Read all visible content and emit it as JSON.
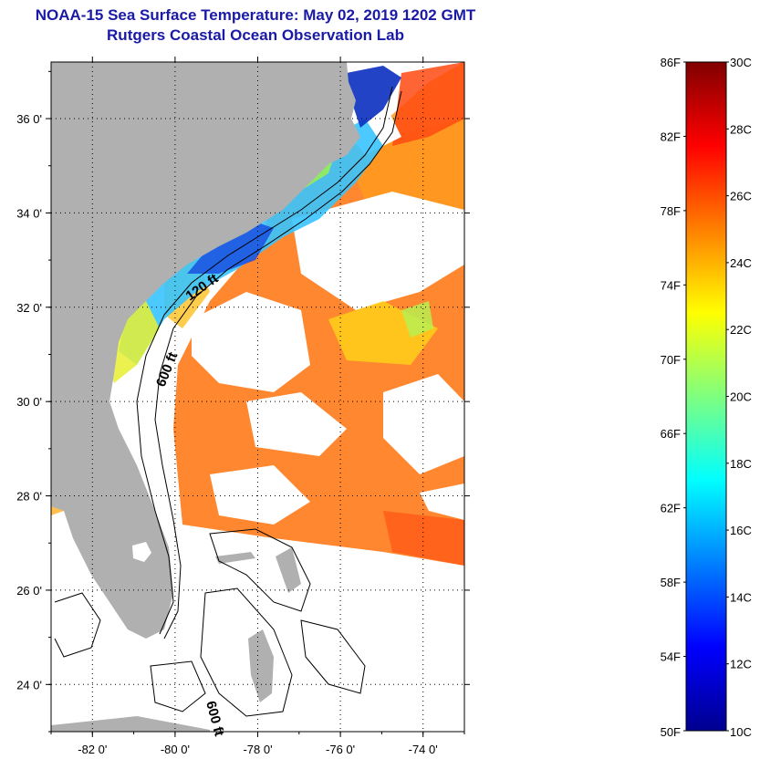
{
  "title": {
    "line1": "NOAA-15 Sea Surface Temperature:  May 02, 2019 1202 GMT",
    "line2": "Rutgers Coastal Ocean Observation Lab"
  },
  "map": {
    "lon_range": [
      -83,
      -73
    ],
    "lat_range": [
      23,
      37.2
    ],
    "lat_ticks": [
      {
        "value": 36,
        "label": "36 0'"
      },
      {
        "value": 34,
        "label": "34 0'"
      },
      {
        "value": 32,
        "label": "32 0'"
      },
      {
        "value": 30,
        "label": "30 0'"
      },
      {
        "value": 28,
        "label": "28 0'"
      },
      {
        "value": 26,
        "label": "26 0'"
      },
      {
        "value": 24,
        "label": "24 0'"
      }
    ],
    "lon_ticks": [
      {
        "value": -82,
        "label": "-82 0'"
      },
      {
        "value": -80,
        "label": "-80 0'"
      },
      {
        "value": -78,
        "label": "-78 0'"
      },
      {
        "value": -76,
        "label": "-76 0'"
      },
      {
        "value": -74,
        "label": "-74 0'"
      }
    ],
    "contour_labels": [
      "120 ft",
      "600 ft",
      "600 ft"
    ],
    "colors": {
      "land": "#b0b0b0",
      "grid": "#000000",
      "cloud": "#ffffff"
    }
  },
  "colorbar": {
    "f_labels": [
      "86F",
      "82F",
      "78F",
      "74F",
      "70F",
      "66F",
      "62F",
      "58F",
      "54F",
      "50F"
    ],
    "c_labels": [
      "30C",
      "28C",
      "26C",
      "24C",
      "22C",
      "20C",
      "18C",
      "16C",
      "14C",
      "12C",
      "10C"
    ],
    "range_c": [
      10,
      30
    ],
    "colormap": "jet"
  }
}
